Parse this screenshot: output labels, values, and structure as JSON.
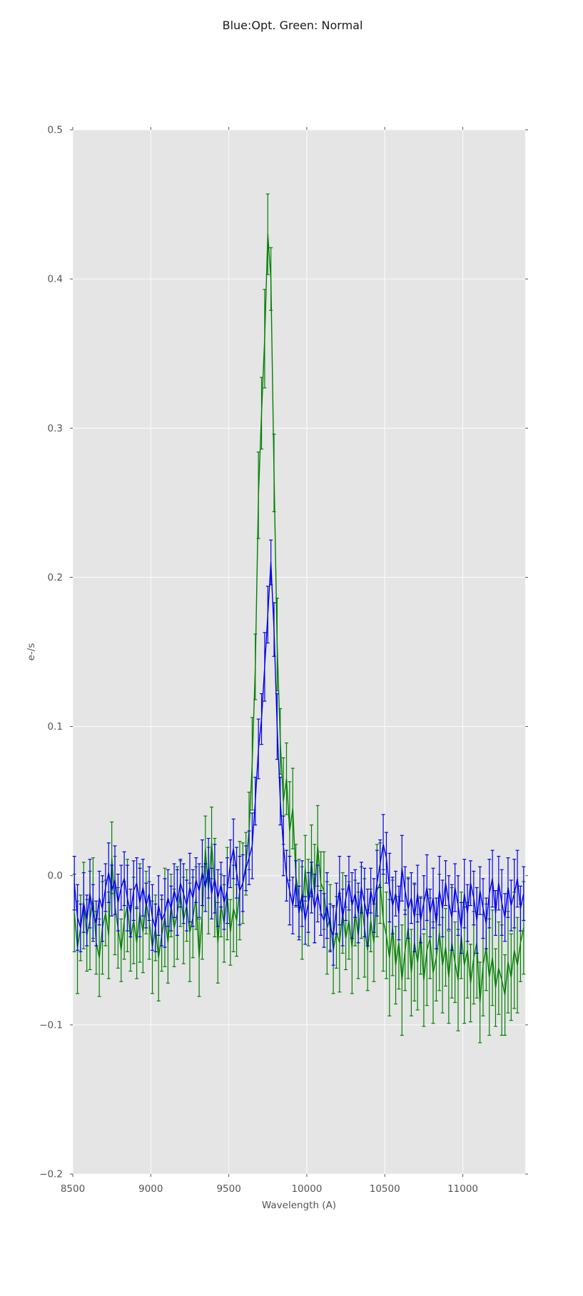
{
  "chart_data": {
    "type": "line",
    "title": "Blue:Opt. Green: Normal",
    "xlabel": "Wavelength (A)",
    "ylabel": "e-/s",
    "xlim": [
      8500,
      11400
    ],
    "ylim": [
      -0.2,
      0.5
    ],
    "grid": true,
    "legend_position": "none (series identified in title)",
    "x_ticks": [
      8500,
      9000,
      9500,
      10000,
      10500,
      11000
    ],
    "x_tick_labels": [
      "8500",
      "9000",
      "9500",
      "10000",
      "10500",
      "11000"
    ],
    "y_ticks": [
      -0.2,
      -0.1,
      0.0,
      0.1,
      0.2,
      0.3,
      0.4,
      0.5
    ],
    "y_tick_labels": [
      "−0.2",
      "−0.1",
      "0.0",
      "0.1",
      "0.2",
      "0.3",
      "0.4",
      "0.5"
    ],
    "x_start": 8510,
    "x_step": 20,
    "n": 145,
    "peak_wavelength": 9750,
    "series": [
      {
        "name": "Normal",
        "color": "#008000",
        "peak_value": 0.43,
        "yerr_pattern": [
          0.026,
          0.031,
          0.022,
          0.029,
          0.024,
          0.033,
          0.027,
          0.021
        ],
        "yerr_pattern_right": [
          0.031,
          0.037,
          0.027,
          0.034,
          0.029,
          0.039,
          0.032,
          0.026
        ],
        "yerr_right_from": 98,
        "values": [
          -0.025,
          -0.048,
          -0.035,
          -0.02,
          -0.04,
          -0.03,
          -0.015,
          -0.045,
          -0.055,
          -0.035,
          -0.025,
          -0.04,
          0.012,
          -0.02,
          -0.035,
          -0.05,
          -0.03,
          -0.02,
          -0.042,
          -0.03,
          -0.045,
          -0.025,
          -0.038,
          -0.018,
          -0.03,
          -0.048,
          -0.035,
          -0.055,
          -0.04,
          -0.028,
          -0.045,
          -0.02,
          -0.035,
          -0.025,
          -0.012,
          -0.03,
          -0.02,
          -0.038,
          -0.028,
          -0.015,
          -0.055,
          -0.025,
          0.018,
          -0.01,
          0.022,
          -0.008,
          -0.045,
          -0.02,
          -0.032,
          -0.012,
          -0.038,
          -0.022,
          -0.03,
          -0.01,
          -0.005,
          0.008,
          0.03,
          0.075,
          0.14,
          0.255,
          0.31,
          0.36,
          0.43,
          0.4,
          0.27,
          0.155,
          0.09,
          0.05,
          0.065,
          0.03,
          0.045,
          0.0,
          -0.015,
          -0.025,
          0.005,
          -0.018,
          0.01,
          -0.012,
          0.02,
          -0.005,
          -0.01,
          -0.035,
          -0.028,
          -0.05,
          -0.038,
          -0.045,
          -0.025,
          -0.042,
          -0.03,
          -0.048,
          -0.025,
          -0.04,
          -0.018,
          -0.035,
          -0.05,
          -0.03,
          -0.045,
          -0.01,
          -0.005,
          -0.03,
          -0.04,
          -0.055,
          -0.035,
          -0.06,
          -0.045,
          -0.07,
          -0.05,
          -0.035,
          -0.065,
          -0.045,
          -0.058,
          -0.04,
          -0.07,
          -0.05,
          -0.042,
          -0.065,
          -0.055,
          -0.038,
          -0.06,
          -0.048,
          -0.068,
          -0.045,
          -0.058,
          -0.07,
          -0.04,
          -0.06,
          -0.05,
          -0.072,
          -0.055,
          -0.045,
          -0.085,
          -0.06,
          -0.048,
          -0.068,
          -0.055,
          -0.075,
          -0.062,
          -0.07,
          -0.08,
          -0.058,
          -0.068,
          -0.05,
          -0.06,
          -0.045,
          -0.035
        ]
      },
      {
        "name": "Opt.",
        "color": "#0000ee",
        "peak_value": 0.21,
        "yerr_pattern": [
          0.018,
          0.022,
          0.016,
          0.02,
          0.017,
          0.023,
          0.019,
          0.015
        ],
        "values": [
          -0.005,
          -0.028,
          -0.035,
          -0.018,
          -0.03,
          -0.012,
          -0.025,
          -0.032,
          -0.015,
          -0.022,
          -0.008,
          0.002,
          -0.01,
          -0.003,
          -0.018,
          -0.008,
          -0.002,
          -0.015,
          -0.025,
          -0.01,
          -0.005,
          -0.018,
          -0.008,
          -0.02,
          -0.012,
          -0.028,
          -0.035,
          -0.02,
          -0.03,
          -0.025,
          -0.015,
          -0.022,
          -0.01,
          -0.018,
          -0.005,
          -0.012,
          -0.02,
          -0.008,
          -0.015,
          -0.003,
          -0.01,
          0.002,
          -0.008,
          0.005,
          -0.012,
          -0.002,
          -0.015,
          -0.006,
          -0.018,
          -0.01,
          0.008,
          0.018,
          0.002,
          -0.01,
          -0.005,
          0.005,
          0.012,
          0.02,
          0.05,
          0.085,
          0.105,
          0.14,
          0.175,
          0.21,
          0.165,
          0.1,
          0.05,
          0.02,
          0.0,
          -0.01,
          -0.02,
          -0.005,
          -0.025,
          -0.012,
          -0.03,
          -0.018,
          -0.008,
          -0.022,
          -0.012,
          -0.025,
          -0.03,
          -0.02,
          -0.035,
          -0.04,
          -0.022,
          -0.01,
          -0.028,
          -0.015,
          -0.005,
          -0.02,
          -0.012,
          -0.025,
          -0.008,
          -0.018,
          -0.028,
          -0.01,
          -0.02,
          -0.005,
          0.008,
          0.021,
          0.012,
          -0.008,
          -0.02,
          -0.012,
          -0.025,
          0.005,
          -0.01,
          -0.022,
          -0.015,
          -0.028,
          -0.012,
          -0.03,
          -0.018,
          -0.008,
          -0.025,
          -0.015,
          -0.032,
          -0.01,
          -0.022,
          -0.005,
          -0.018,
          -0.028,
          -0.008,
          -0.02,
          -0.035,
          -0.012,
          -0.025,
          -0.005,
          -0.015,
          -0.03,
          -0.01,
          -0.022,
          -0.032,
          -0.012,
          -0.002,
          -0.025,
          -0.005,
          -0.018,
          -0.028,
          -0.008,
          -0.02,
          -0.012,
          -0.002,
          -0.022,
          -0.012
        ]
      }
    ],
    "style": {
      "plot_bg": "#e5e5e5",
      "grid_color": "#fafafa",
      "tick_color": "#555555"
    }
  }
}
